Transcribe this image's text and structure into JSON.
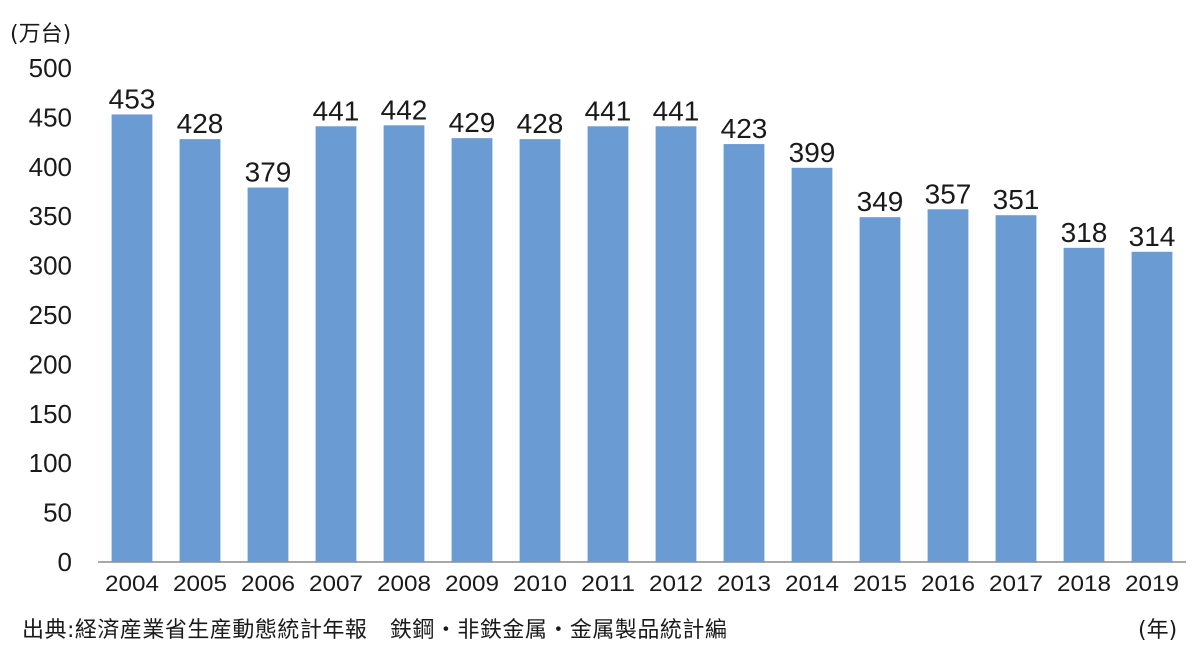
{
  "chart_data": {
    "type": "bar",
    "categories": [
      "2004",
      "2005",
      "2006",
      "2007",
      "2008",
      "2009",
      "2010",
      "2011",
      "2012",
      "2013",
      "2014",
      "2015",
      "2016",
      "2017",
      "2018",
      "2019"
    ],
    "values": [
      453,
      428,
      379,
      441,
      442,
      429,
      428,
      441,
      441,
      423,
      399,
      349,
      357,
      351,
      318,
      314
    ],
    "ylim": [
      0,
      500
    ],
    "yticks": [
      0,
      50,
      100,
      150,
      200,
      250,
      300,
      350,
      400,
      450,
      500
    ],
    "y_unit": "(万台)",
    "x_unit": "(年)",
    "grid": false,
    "bar_color": "#6a9bd3"
  },
  "source": "出典:経済産業省生産動態統計年報　鉄鋼・非鉄金属・金属製品統計編"
}
